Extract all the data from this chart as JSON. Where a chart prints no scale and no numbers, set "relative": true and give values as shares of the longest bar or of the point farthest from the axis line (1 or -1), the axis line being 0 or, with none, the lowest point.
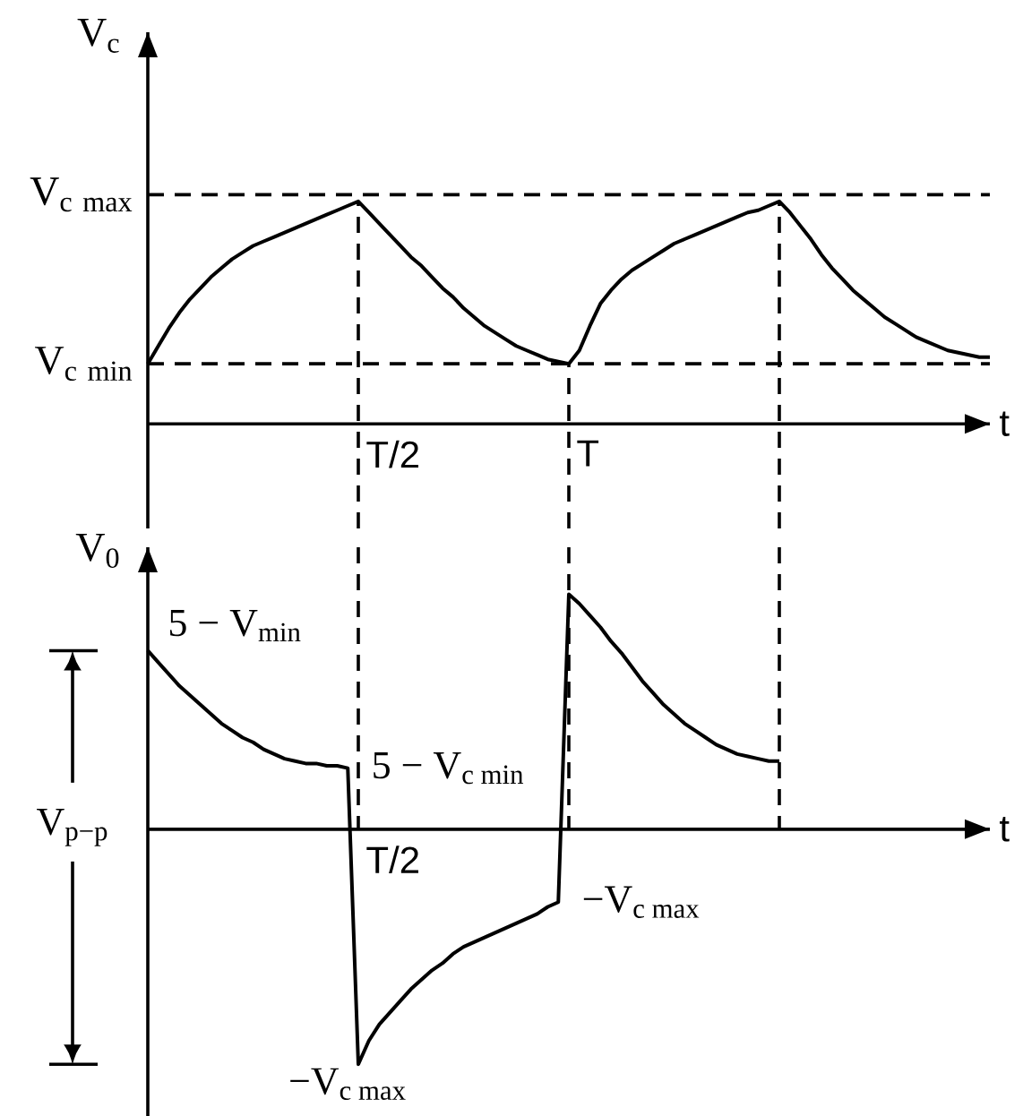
{
  "chart_data": [
    {
      "type": "line",
      "ylabel": "V$_{c}$",
      "xlabel": "t",
      "relative": true,
      "color": "#000000",
      "line_style": "solid",
      "grid": "x",
      "categories": [
        null,
        null,
        null,
        null,
        null,
        null,
        null,
        null,
        null,
        null,
        null,
        null,
        null,
        null,
        null,
        null,
        null,
        null,
        null,
        null,
        null,
        null,
        null,
        null,
        null,
        null,
        null,
        null,
        null,
        null,
        null,
        null,
        null,
        null,
        null,
        null,
        null,
        null,
        null,
        null,
        null,
        null,
        null,
        null,
        null,
        null,
        null,
        null,
        null,
        null,
        null,
        null,
        null,
        null,
        null,
        null,
        null,
        null,
        null,
        null,
        null,
        null,
        null,
        null,
        null,
        null,
        null,
        null,
        null,
        null,
        null,
        null,
        null,
        null,
        null,
        null,
        null,
        null,
        null,
        null,
        null
      ],
      "values": [
        0.27,
        0.35,
        0.43,
        0.5,
        0.56,
        0.61,
        0.66,
        0.7,
        0.74,
        0.77,
        0.8,
        0.82,
        0.84,
        0.86,
        0.88,
        0.9,
        0.92,
        0.94,
        0.96,
        0.98,
        1,
        0.95,
        0.9,
        0.85,
        0.8,
        0.75,
        0.71,
        0.66,
        0.61,
        0.57,
        0.52,
        0.48,
        0.44,
        0.41,
        0.38,
        0.35,
        0.33,
        0.31,
        0.29,
        0.28,
        0.27,
        0.33,
        0.44,
        0.54,
        0.6,
        0.65,
        0.69,
        0.72,
        0.75,
        0.78,
        0.81,
        0.83,
        0.85,
        0.87,
        0.89,
        0.91,
        0.93,
        0.95,
        0.96,
        0.98,
        1,
        0.95,
        0.89,
        0.83,
        0.76,
        0.7,
        0.65,
        0.6,
        0.56,
        0.52,
        0.48,
        0.45,
        0.42,
        0.39,
        0.37,
        0.35,
        0.33,
        0.32,
        0.31,
        0.3,
        0.3
      ],
      "ref_lines": [
        {
          "axis": "y",
          "value": 1.03,
          "label": "\\mathrm{V}_{\\mathrm{c\\ max}}",
          "line_style": "dashed"
        },
        {
          "axis": "y",
          "value": 0.27,
          "label": "\\mathrm{V}_{\\mathrm{c\\ min}}",
          "line_style": "dashed"
        }
      ],
      "annotations": [
        "T/2",
        "T"
      ]
    },
    {
      "type": "line",
      "ylabel": "V$_{0}$",
      "xlabel": "t",
      "relative": true,
      "color": "#000000",
      "line_style": "solid",
      "categories": [
        null,
        null,
        null,
        null,
        null,
        null,
        null,
        null,
        null,
        null,
        null,
        null,
        null,
        null,
        null,
        null,
        null,
        null,
        null,
        null,
        null,
        null,
        null,
        null,
        null,
        null,
        null,
        null,
        null,
        null,
        null,
        null,
        null,
        null,
        null,
        null,
        null,
        null,
        null,
        null,
        null,
        null,
        null,
        null,
        null,
        null,
        null,
        null,
        null,
        null,
        null,
        null,
        null,
        null,
        null,
        null,
        null,
        null,
        null,
        null,
        null
      ],
      "values": [
        0.76,
        0.71,
        0.66,
        0.61,
        0.57,
        0.53,
        0.49,
        0.45,
        0.42,
        0.39,
        0.37,
        0.34,
        0.32,
        0.3,
        0.29,
        0.28,
        0.28,
        0.27,
        0.27,
        0.26,
        -1,
        -0.9,
        -0.83,
        -0.78,
        -0.73,
        -0.68,
        -0.64,
        -0.6,
        -0.57,
        -0.53,
        -0.5,
        -0.48,
        -0.46,
        -0.44,
        -0.42,
        -0.4,
        -0.38,
        -0.36,
        -0.33,
        -0.31,
        1,
        0.96,
        0.91,
        0.86,
        0.8,
        0.75,
        0.69,
        0.63,
        0.58,
        0.53,
        0.49,
        0.45,
        0.42,
        0.39,
        0.36,
        0.34,
        0.32,
        0.31,
        0.3,
        0.29,
        0.29
      ],
      "annotations": [
        "\\text{5 − V}_{\\text{min}}",
        "\\text{5 − V}_{\\text{c min}}",
        "\\text{−V}_{\\text{c max}}",
        "\\text{−V}_{\\text{c max}}",
        "T/2",
        "V$_{p−p}$"
      ]
    }
  ]
}
